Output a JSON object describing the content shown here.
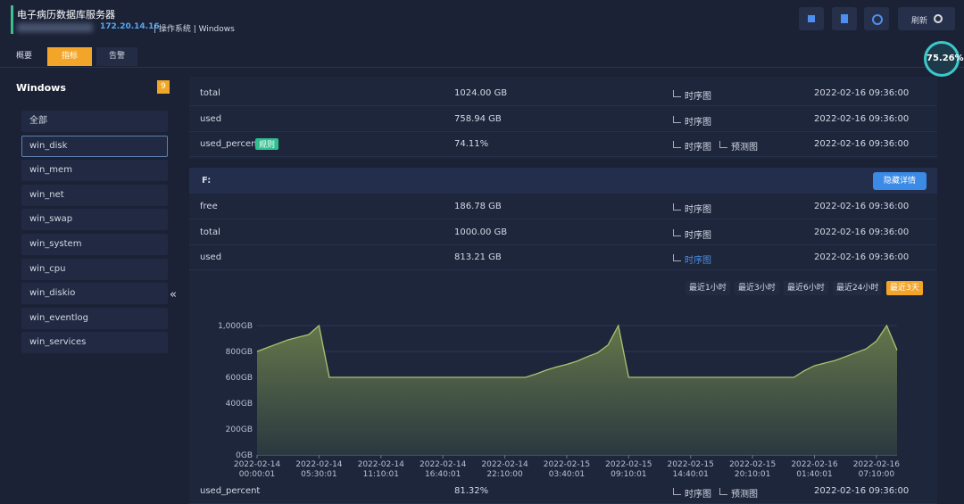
{
  "header": {
    "title": "电子病历数据库服务器",
    "ip": "172.20.14.16",
    "info": "| 操作系统 | Windows",
    "refresh": "刷新"
  },
  "gauge": "75.26%",
  "tabs": [
    "概要",
    "指标",
    "告警"
  ],
  "sidebar": {
    "title": "Windows",
    "count": 9,
    "items": [
      "全部",
      "win_disk",
      "win_mem",
      "win_net",
      "win_swap",
      "win_system",
      "win_cpu",
      "win_diskio",
      "win_eventlog",
      "win_services"
    ],
    "collapse": "«"
  },
  "top_rows": [
    {
      "name": "total",
      "value": "1024.00 GB",
      "links": [
        "时序图"
      ],
      "time": "2022-02-16 09:36:00"
    },
    {
      "name": "used",
      "value": "758.94 GB",
      "links": [
        "时序图"
      ],
      "time": "2022-02-16 09:36:00"
    },
    {
      "name": "used_percent",
      "tag": "规则",
      "value": "74.11%",
      "links": [
        "时序图",
        "预测图"
      ],
      "time": "2022-02-16 09:36:00"
    }
  ],
  "section": {
    "title": "F:",
    "button": "隐藏详情",
    "rows": [
      {
        "name": "free",
        "value": "186.78 GB",
        "links": [
          "时序图"
        ],
        "time": "2022-02-16 09:36:00"
      },
      {
        "name": "total",
        "value": "1000.00 GB",
        "links": [
          "时序图"
        ],
        "time": "2022-02-16 09:36:00"
      },
      {
        "name": "used",
        "value": "813.21 GB",
        "links": [
          "时序图"
        ],
        "time": "2022-02-16 09:36:00"
      }
    ],
    "ranges": [
      "最近1小时",
      "最近3小时",
      "最近6小时",
      "最近24小时",
      "最近3天"
    ],
    "bottom_row": {
      "name": "used_percent",
      "value": "81.32%",
      "links": [
        "时序图",
        "预测图"
      ],
      "time": "2022-02-16 09:36:00"
    }
  },
  "chart_data": {
    "type": "area",
    "color": "#a9c46e",
    "categories": [
      "2022-02-14 00:00:01",
      null,
      null,
      null,
      null,
      null,
      "2022-02-14 05:30:01",
      null,
      null,
      null,
      null,
      null,
      "2022-02-14 11:10:01",
      null,
      null,
      null,
      null,
      null,
      "2022-02-14 16:40:01",
      null,
      null,
      null,
      null,
      null,
      "2022-02-14 22:10:00",
      null,
      null,
      null,
      null,
      null,
      "2022-02-15 03:40:01",
      null,
      null,
      null,
      null,
      null,
      "2022-02-15 09:10:01",
      null,
      null,
      null,
      null,
      null,
      "2022-02-15 14:40:01",
      null,
      null,
      null,
      null,
      null,
      "2022-02-15 20:10:01",
      null,
      null,
      null,
      null,
      null,
      "2022-02-16 01:40:01",
      null,
      null,
      null,
      null,
      null,
      "2022-02-16 07:10:00",
      null,
      null
    ],
    "values": [
      800,
      830,
      860,
      890,
      910,
      930,
      1000,
      600,
      600,
      600,
      600,
      600,
      600,
      600,
      600,
      600,
      600,
      600,
      600,
      600,
      600,
      600,
      600,
      600,
      600,
      600,
      600,
      625,
      655,
      680,
      700,
      725,
      760,
      790,
      850,
      1000,
      600,
      600,
      600,
      600,
      600,
      600,
      600,
      600,
      600,
      600,
      600,
      600,
      600,
      600,
      600,
      600,
      600,
      650,
      690,
      710,
      730,
      760,
      790,
      820,
      880,
      1000,
      810
    ],
    "ylim": [
      0,
      1000
    ],
    "yticks": [
      {
        "value": 0,
        "label": "0GB"
      },
      {
        "value": 200,
        "label": "200GB"
      },
      {
        "value": 400,
        "label": "400GB"
      },
      {
        "value": 600,
        "label": "600GB"
      },
      {
        "value": 800,
        "label": "800GB"
      },
      {
        "value": 1000,
        "label": "1,000GB"
      }
    ],
    "grid": true
  }
}
